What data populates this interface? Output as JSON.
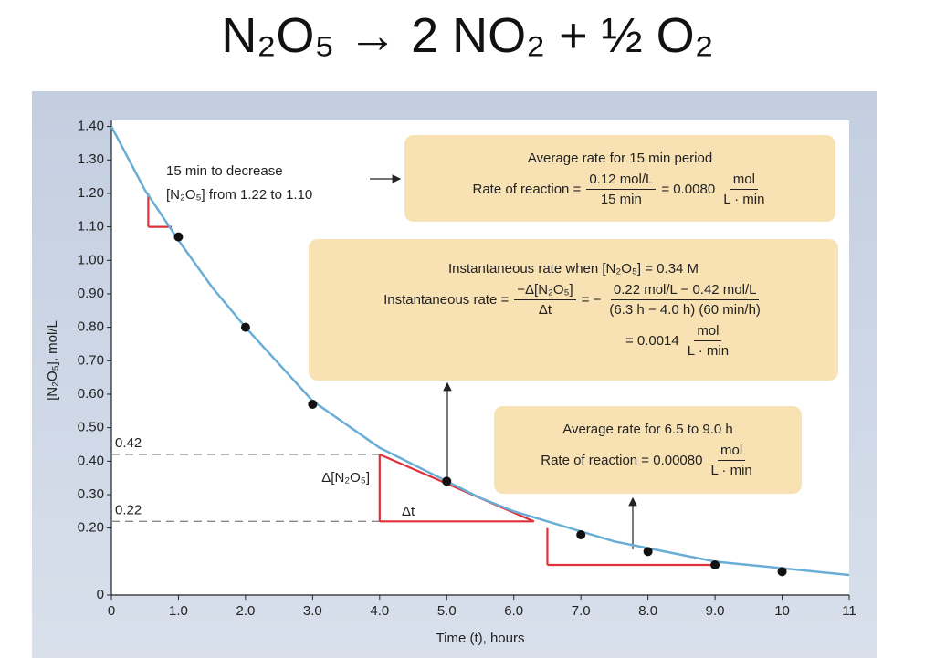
{
  "title": "N₂O₅ → 2 NO₂ + ½ O₂",
  "chart_data": {
    "type": "line",
    "x_label": "Time (t), hours",
    "y_label": "[N₂O₅], mol/L",
    "xlim": [
      0,
      11
    ],
    "ylim": [
      0,
      1.4
    ],
    "xticks": [
      0,
      {
        "value": 1,
        "label": "1.0"
      },
      {
        "value": 2,
        "label": "2.0"
      },
      {
        "value": 3,
        "label": "3.0"
      },
      {
        "value": 4,
        "label": "4.0"
      },
      {
        "value": 5,
        "label": "5.0"
      },
      {
        "value": 6,
        "label": "6.0"
      },
      {
        "value": 7,
        "label": "7.0"
      },
      {
        "value": 8,
        "label": "8.0"
      },
      {
        "value": 9,
        "label": "9.0"
      },
      10,
      11
    ],
    "yticks": [
      0,
      {
        "value": 0.2,
        "label": "0.20"
      },
      {
        "value": 0.3,
        "label": "0.30"
      },
      {
        "value": 0.4,
        "label": "0.40"
      },
      {
        "value": 0.5,
        "label": "0.50"
      },
      {
        "value": 0.6,
        "label": "0.60"
      },
      {
        "value": 0.7,
        "label": "0.70"
      },
      {
        "value": 0.8,
        "label": "0.80"
      },
      {
        "value": 0.9,
        "label": "0.90"
      },
      {
        "value": 1.0,
        "label": "1.00"
      },
      {
        "value": 1.1,
        "label": "1.10"
      },
      {
        "value": 1.2,
        "label": "1.20"
      },
      {
        "value": 1.3,
        "label": "1.30"
      },
      {
        "value": 1.4,
        "label": "1.40"
      }
    ],
    "series": [
      {
        "mode": "line",
        "color": "#6aaed6",
        "x": [
          0,
          0.5,
          1,
          1.5,
          2,
          2.5,
          3,
          3.5,
          4,
          4.5,
          5,
          5.5,
          6,
          6.5,
          7,
          7.5,
          8,
          8.5,
          9,
          9.5,
          10,
          10.5,
          11
        ],
        "values": [
          1.4,
          1.21,
          1.06,
          0.92,
          0.8,
          0.69,
          0.58,
          0.51,
          0.44,
          0.39,
          0.34,
          0.29,
          0.25,
          0.22,
          0.19,
          0.16,
          0.14,
          0.12,
          0.1,
          0.09,
          0.08,
          0.07,
          0.06
        ]
      },
      {
        "mode": "markers",
        "color": "#111111",
        "x": [
          1,
          2,
          3,
          5,
          7,
          8,
          9,
          10
        ],
        "values": [
          1.07,
          0.8,
          0.57,
          0.34,
          0.18,
          0.13,
          0.09,
          0.07
        ]
      }
    ],
    "reference_lines": [
      {
        "label": "0.42",
        "value": 0.42,
        "x_end": 4.0
      },
      {
        "label": "0.22",
        "value": 0.22,
        "x_end": 4.0
      }
    ],
    "triangle_color": "#e0303a",
    "triangles": [
      {
        "x": [
          0.55,
          0.9
        ],
        "y": [
          1.2,
          1.1
        ],
        "hypotenuse": false
      },
      {
        "x": [
          4.0,
          6.3
        ],
        "y": [
          0.42,
          0.22
        ],
        "hypotenuse": true
      },
      {
        "x": [
          6.5,
          9.0
        ],
        "y": [
          0.2,
          0.09
        ],
        "hypotenuse": false
      }
    ],
    "annotations": {
      "note": [
        "15 min to decrease",
        "[N₂O₅] from 1.22 to 1.10"
      ],
      "delta_conc": "Δ[N₂O₅]",
      "delta_t": "Δt"
    },
    "boxes": [
      {
        "heading": "Average rate for 15 min period",
        "rows": [
          [
            "Rate of reaction =",
            {
              "num": "0.12 mol/L",
              "den": "15 min"
            },
            "= 0.0080",
            {
              "num": "mol",
              "den": "L · min"
            }
          ]
        ]
      },
      {
        "heading": "Instantaneous rate when [N₂O₅] = 0.34 M",
        "rows": [
          [
            "Instantaneous rate =",
            {
              "num": "−Δ[N₂O₅]",
              "den": "Δt"
            },
            "= −",
            {
              "num": "0.22 mol/L − 0.42 mol/L",
              "den": "(6.3 h − 4.0 h) (60 min/h)"
            }
          ],
          [
            "= 0.0014",
            {
              "num": "mol",
              "den": "L · min"
            }
          ]
        ]
      },
      {
        "heading": "Average rate for 6.5 to 9.0 h",
        "rows": [
          [
            "Rate of reaction = 0.00080",
            {
              "num": "mol",
              "den": "L · min"
            }
          ]
        ]
      }
    ]
  }
}
